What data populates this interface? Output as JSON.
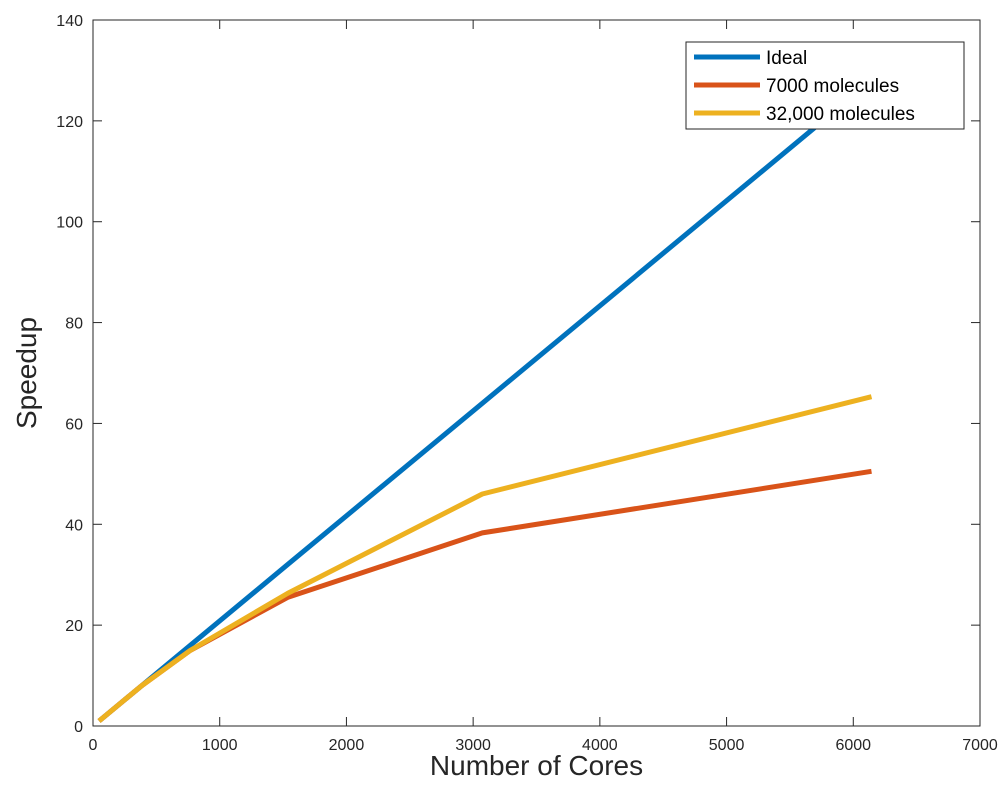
{
  "chart_data": {
    "type": "line",
    "xlabel": "Number of Cores",
    "ylabel": "Speedup",
    "xlim": [
      0,
      7000
    ],
    "ylim": [
      0,
      140
    ],
    "xticks": [
      0,
      1000,
      2000,
      3000,
      4000,
      5000,
      6000,
      7000
    ],
    "yticks": [
      0,
      20,
      40,
      60,
      80,
      100,
      120,
      140
    ],
    "grid": false,
    "legend_position": "top-right",
    "series": [
      {
        "name": "Ideal",
        "color": "#0072BD",
        "x": [
          48,
          384,
          768,
          1536,
          3072,
          6144
        ],
        "y": [
          1,
          8,
          16,
          32,
          64,
          128
        ]
      },
      {
        "name": "7000 molecules",
        "color": "#D95319",
        "x": [
          48,
          384,
          768,
          1536,
          3072,
          6144
        ],
        "y": [
          1,
          8,
          15,
          25.5,
          38.3,
          50.5
        ]
      },
      {
        "name": "32,000 molecules",
        "color": "#EDB120",
        "x": [
          48,
          384,
          768,
          1536,
          3072,
          6144
        ],
        "y": [
          1,
          8,
          15,
          26.3,
          46,
          65.3
        ]
      }
    ]
  }
}
